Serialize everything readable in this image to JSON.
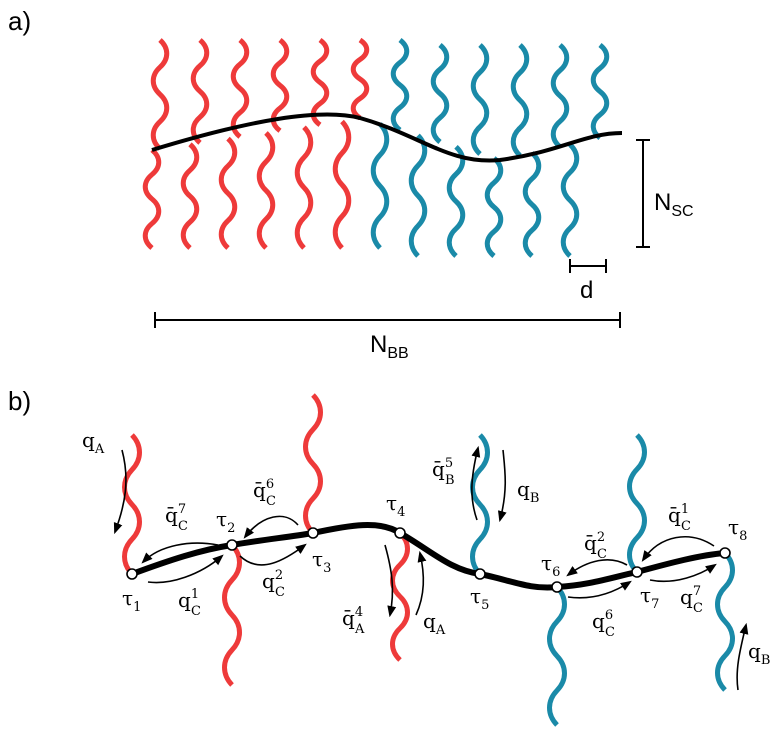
{
  "panel_a": {
    "label": "a)",
    "n_sc": {
      "base": "N",
      "sub": "SC"
    },
    "d": "d",
    "n_bb": {
      "base": "N",
      "sub": "BB"
    }
  },
  "panel_b": {
    "label": "b)",
    "nodes": [
      {
        "base": "τ",
        "sub": "1"
      },
      {
        "base": "τ",
        "sub": "2"
      },
      {
        "base": "τ",
        "sub": "3"
      },
      {
        "base": "τ",
        "sub": "4"
      },
      {
        "base": "τ",
        "sub": "5"
      },
      {
        "base": "τ",
        "sub": "6"
      },
      {
        "base": "τ",
        "sub": "7"
      },
      {
        "base": "τ",
        "sub": "8"
      }
    ],
    "arrows": [
      {
        "base": "q",
        "sub": "A"
      },
      {
        "base": "q̄",
        "sup": "7",
        "sub": "C"
      },
      {
        "base": "q",
        "sup": "1",
        "sub": "C"
      },
      {
        "base": "q̄",
        "sup": "6",
        "sub": "C"
      },
      {
        "base": "q",
        "sup": "2",
        "sub": "C"
      },
      {
        "base": "q̄",
        "sup": "5",
        "sub": "B"
      },
      {
        "base": "q",
        "sub": "B"
      },
      {
        "base": "q̄",
        "sup": "4",
        "sub": "A"
      },
      {
        "base": "q",
        "sub": "A"
      },
      {
        "base": "q̄",
        "sup": "2",
        "sub": "C"
      },
      {
        "base": "q",
        "sup": "6",
        "sub": "C"
      },
      {
        "base": "q̄",
        "sup": "1",
        "sub": "C"
      },
      {
        "base": "q",
        "sup": "7",
        "sub": "C"
      },
      {
        "base": "q",
        "sub": "B"
      }
    ]
  }
}
